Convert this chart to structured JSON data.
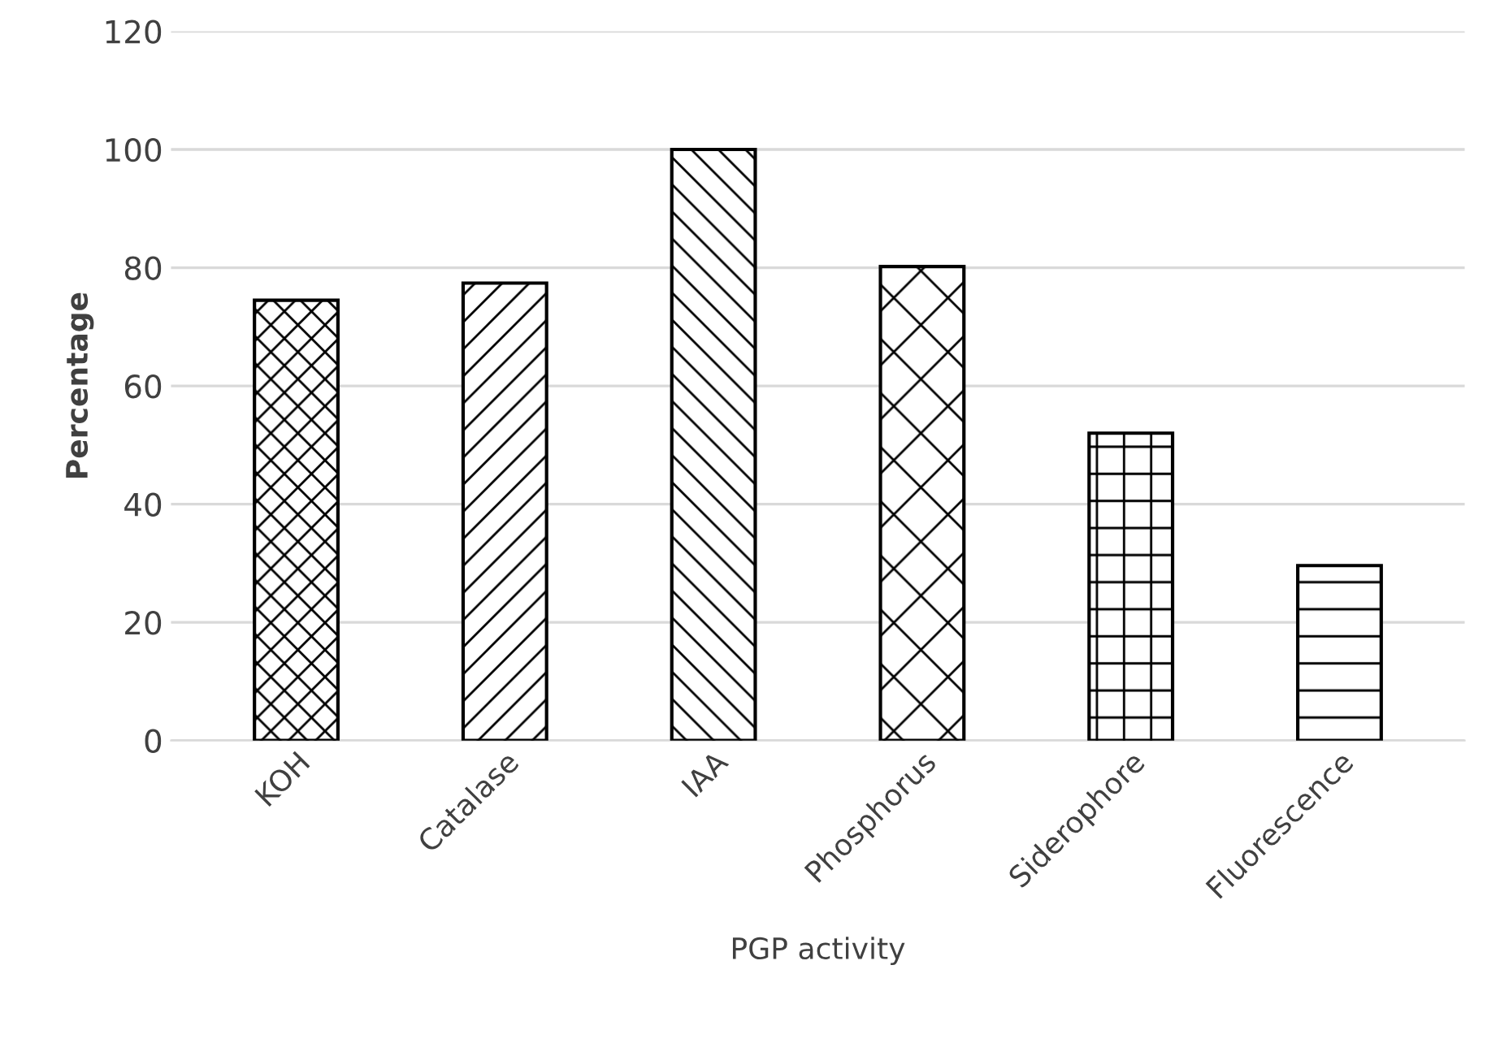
{
  "chart_data": {
    "type": "bar",
    "xlabel": "PGP activity",
    "ylabel": "Percentage",
    "categories": [
      "KOH",
      "Catalase",
      "IAA",
      "Phosphorus",
      "Siderophore",
      "Fluorescence"
    ],
    "values": [
      74.5,
      77.4,
      100,
      80.2,
      52,
      29.6
    ],
    "colors": [
      "#000000",
      "#000000",
      "#000000",
      "#000000",
      "#000000",
      "#000000"
    ],
    "ylim": [
      0,
      120
    ],
    "yticks": [
      0,
      20,
      40,
      60,
      80,
      100,
      120
    ],
    "grid": "y",
    "legend": false
  }
}
